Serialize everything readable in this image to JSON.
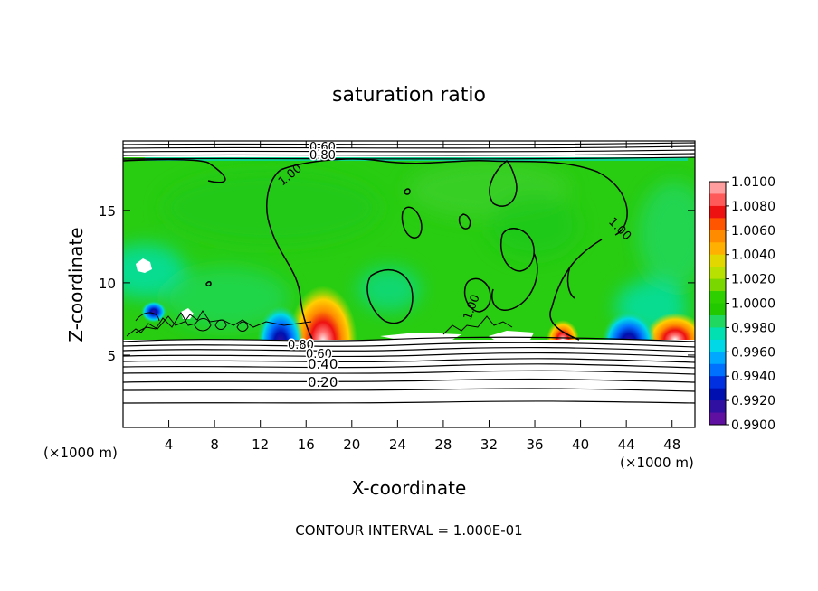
{
  "chart_data": {
    "type": "heatmap",
    "title": "saturation ratio",
    "xlabel": "X-coordinate",
    "ylabel": "Z-coordinate",
    "x_unit": "(×1000 m)",
    "y_unit": "(×1000 m)",
    "xlim": [
      0,
      50
    ],
    "ylim": [
      0,
      19.8
    ],
    "x_ticks": [
      4,
      8,
      12,
      16,
      20,
      24,
      28,
      32,
      36,
      40,
      44,
      48
    ],
    "y_ticks": [
      5,
      10,
      15
    ],
    "footer": "CONTOUR INTERVAL = 1.000E-01",
    "colorbar": {
      "labels": [
        "1.0100",
        "1.0080",
        "1.0060",
        "1.0040",
        "1.0020",
        "1.0000",
        "0.9980",
        "0.9960",
        "0.9940",
        "0.9920",
        "0.9900"
      ],
      "colors": [
        "#ff9e9e",
        "#ff5a5a",
        "#ee1111",
        "#ff5500",
        "#ff8c00",
        "#ffb000",
        "#e2d800",
        "#b8e000",
        "#7ad800",
        "#2ed000",
        "#22c800",
        "#20d860",
        "#00e0b0",
        "#00d8e8",
        "#00a8ff",
        "#0070ff",
        "#0030e0",
        "#0010b0",
        "#3010a0",
        "#6010a0"
      ]
    },
    "contour_labels": [
      "0.60",
      "0.80",
      "1.00",
      "1.00",
      "1.00",
      "0.80",
      "0.60",
      "0.40",
      "0.20"
    ],
    "features": {
      "dry_layer_top_z": 6.3,
      "moist_layer_top_z": 18.7,
      "supersaturated_maxima_x": [
        17.5,
        38.5,
        47
      ],
      "subsaturated_minima_x": [
        14.5,
        44
      ]
    }
  }
}
